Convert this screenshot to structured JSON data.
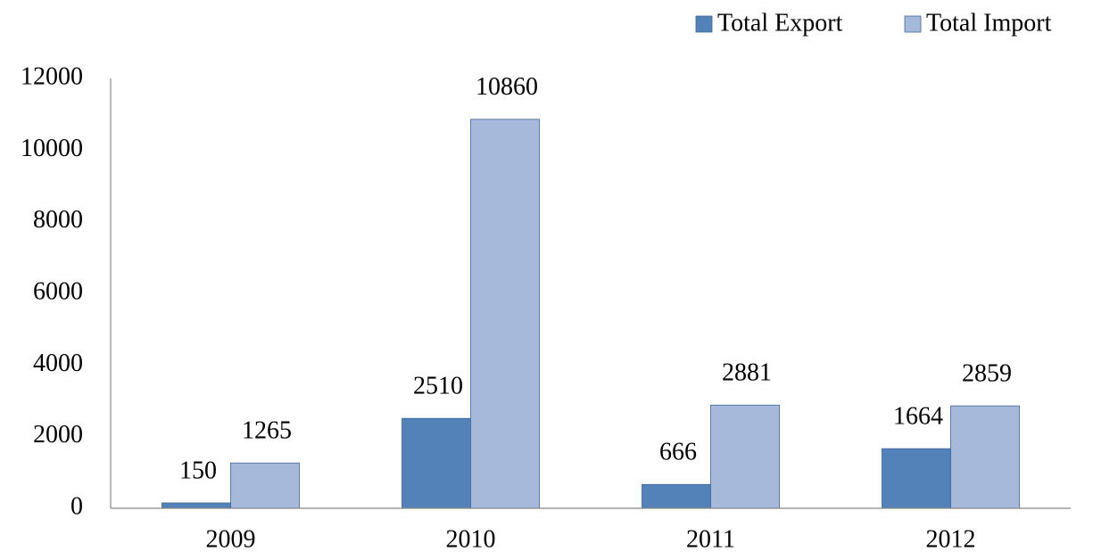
{
  "chart_data": {
    "type": "bar",
    "categories": [
      "2009",
      "2010",
      "2011",
      "2012"
    ],
    "series": [
      {
        "name": "Total Export",
        "color": "#5382b8",
        "values": [
          150,
          2510,
          666,
          1664
        ]
      },
      {
        "name": "Total Import",
        "color": "#a7b9da",
        "values": [
          1265,
          10860,
          2881,
          2859
        ]
      }
    ],
    "ylim": [
      0,
      12000
    ],
    "yticks": [
      0,
      2000,
      4000,
      6000,
      8000,
      10000,
      12000
    ],
    "grid": false,
    "legend": "top-right"
  }
}
